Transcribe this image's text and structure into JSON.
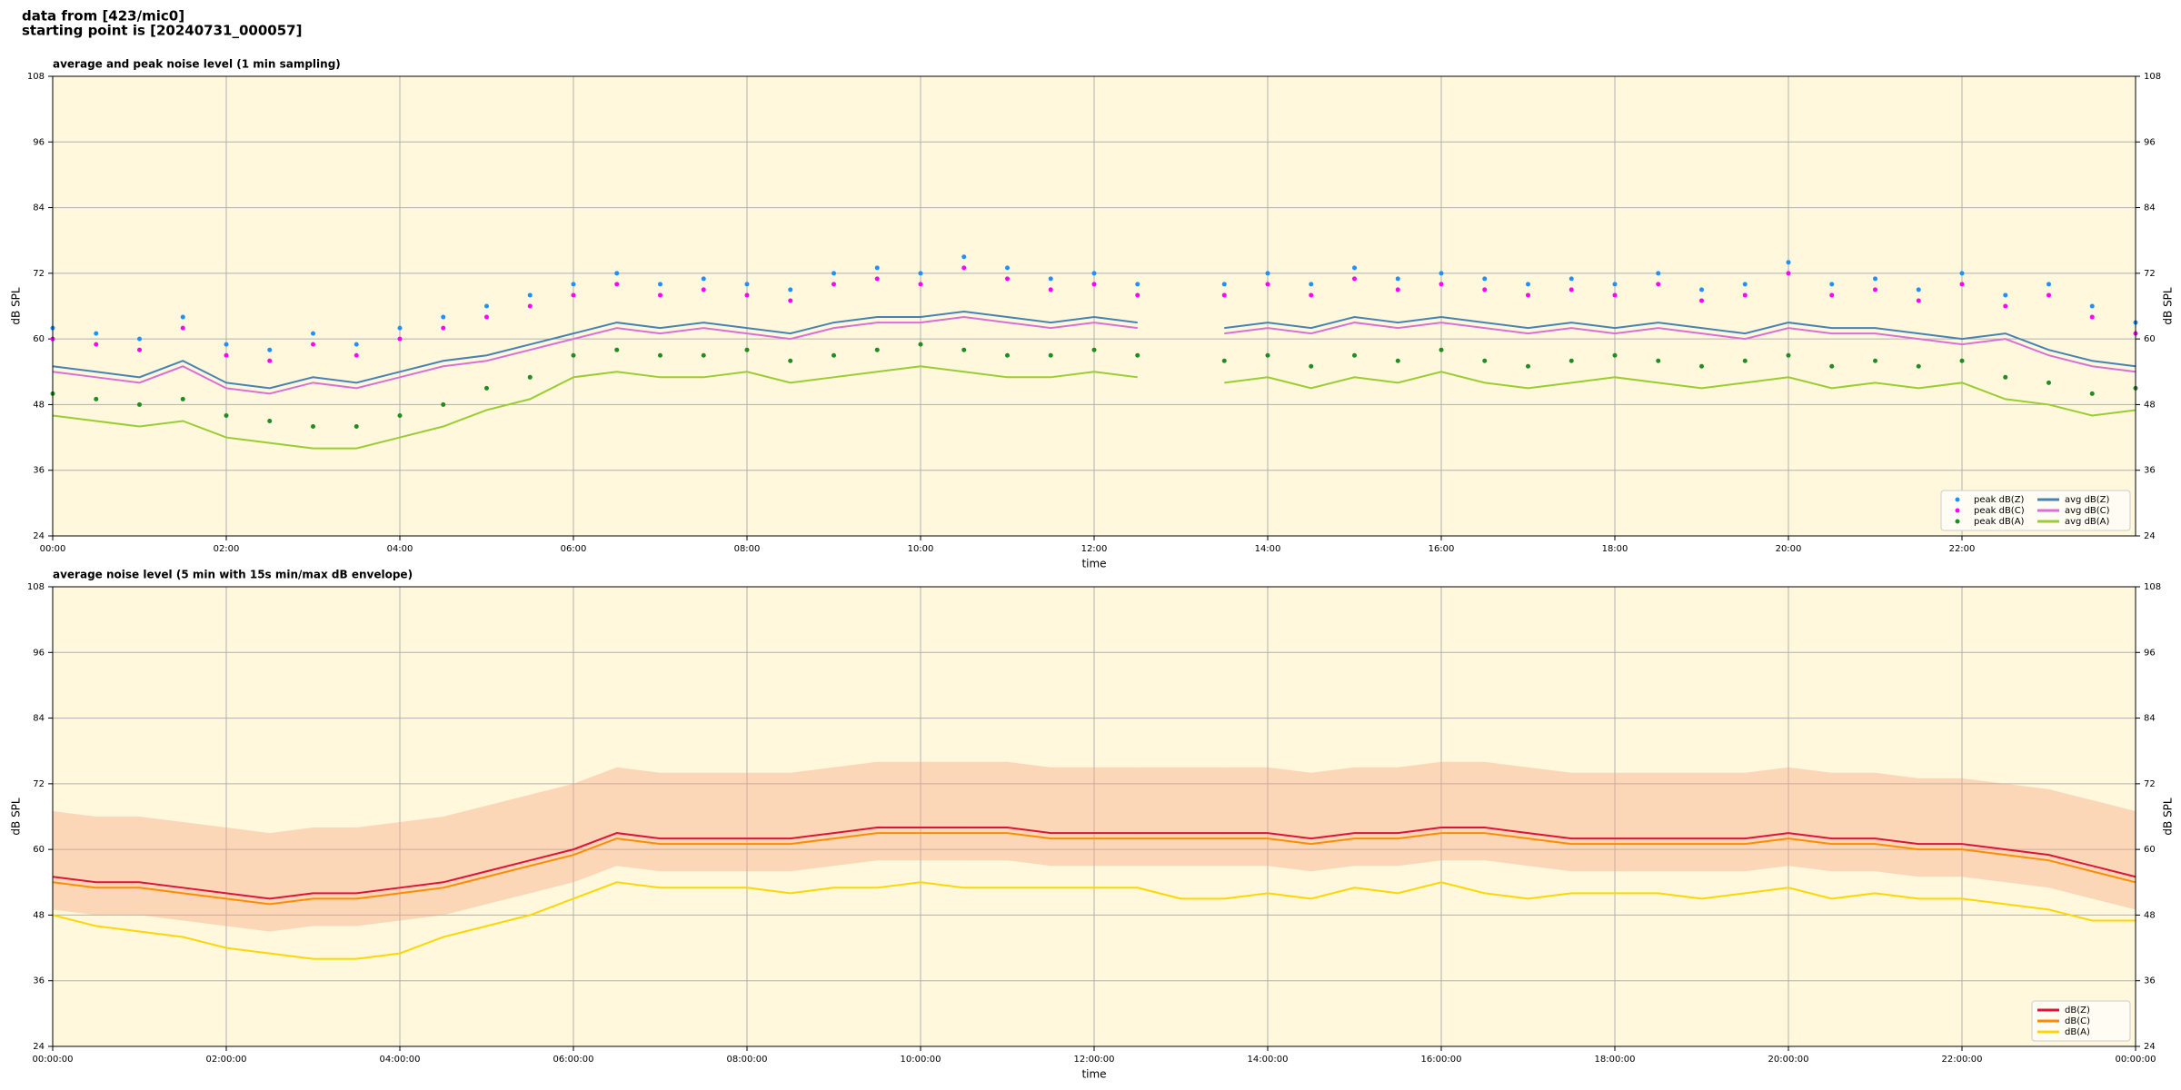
{
  "header": {
    "line1": "data from [423/mic0]",
    "line2": "starting point is [20240731_000057]"
  },
  "chart_data": [
    {
      "type": "line",
      "title": "average and peak noise level (1 min sampling)",
      "xlabel": "time",
      "ylabel": "dB SPL",
      "background": "#fff8dc",
      "grid": true,
      "legend": "lower right",
      "legend_columns": 2,
      "xlim": [
        0,
        24
      ],
      "ylim": [
        24,
        108
      ],
      "yticks": [
        24,
        36,
        48,
        60,
        72,
        84,
        96,
        108
      ],
      "xticks": [
        {
          "value": 0,
          "label": "00:00"
        },
        {
          "value": 2,
          "label": "02:00"
        },
        {
          "value": 4,
          "label": "04:00"
        },
        {
          "value": 6,
          "label": "06:00"
        },
        {
          "value": 8,
          "label": "08:00"
        },
        {
          "value": 10,
          "label": "10:00"
        },
        {
          "value": 12,
          "label": "12:00"
        },
        {
          "value": 14,
          "label": "14:00"
        },
        {
          "value": 16,
          "label": "16:00"
        },
        {
          "value": 18,
          "label": "18:00"
        },
        {
          "value": 20,
          "label": "20:00"
        },
        {
          "value": 22,
          "label": "22:00"
        }
      ],
      "x": [
        0,
        0.5,
        1,
        1.5,
        2,
        2.5,
        3,
        3.5,
        4,
        4.5,
        5,
        5.5,
        6,
        6.5,
        7,
        7.5,
        8,
        8.5,
        9,
        9.5,
        10,
        10.5,
        11,
        11.5,
        12,
        12.5,
        13,
        13.5,
        14,
        14.5,
        15,
        15.5,
        16,
        16.5,
        17,
        17.5,
        18,
        18.5,
        19,
        19.5,
        20,
        20.5,
        21,
        21.5,
        22,
        22.5,
        23,
        23.5,
        24
      ],
      "series": [
        {
          "name": "peak dB(Z)",
          "kind": "scatter",
          "color": "#1e90ff",
          "values": [
            62,
            61,
            60,
            64,
            59,
            58,
            61,
            59,
            62,
            64,
            66,
            68,
            70,
            72,
            70,
            71,
            70,
            69,
            72,
            73,
            72,
            75,
            73,
            71,
            72,
            70,
            null,
            70,
            72,
            70,
            73,
            71,
            72,
            71,
            70,
            71,
            70,
            72,
            69,
            70,
            74,
            70,
            71,
            69,
            72,
            68,
            70,
            66,
            63
          ]
        },
        {
          "name": "peak dB(C)",
          "kind": "scatter",
          "color": "#ff00ff",
          "values": [
            60,
            59,
            58,
            62,
            57,
            56,
            59,
            57,
            60,
            62,
            64,
            66,
            68,
            70,
            68,
            69,
            68,
            67,
            70,
            71,
            70,
            73,
            71,
            69,
            70,
            68,
            null,
            68,
            70,
            68,
            71,
            69,
            70,
            69,
            68,
            69,
            68,
            70,
            67,
            68,
            72,
            68,
            69,
            67,
            70,
            66,
            68,
            64,
            61
          ]
        },
        {
          "name": "peak dB(A)",
          "kind": "scatter",
          "color": "#228b22",
          "values": [
            50,
            49,
            48,
            49,
            46,
            45,
            44,
            44,
            46,
            48,
            51,
            53,
            57,
            58,
            57,
            57,
            58,
            56,
            57,
            58,
            59,
            58,
            57,
            57,
            58,
            57,
            null,
            56,
            57,
            55,
            57,
            56,
            58,
            56,
            55,
            56,
            57,
            56,
            55,
            56,
            57,
            55,
            56,
            55,
            56,
            53,
            52,
            50,
            51
          ]
        },
        {
          "name": "avg dB(Z)",
          "kind": "line",
          "color": "#4682b4",
          "values": [
            55,
            54,
            53,
            56,
            52,
            51,
            53,
            52,
            54,
            56,
            57,
            59,
            61,
            63,
            62,
            63,
            62,
            61,
            63,
            64,
            64,
            65,
            64,
            63,
            64,
            63,
            null,
            62,
            63,
            62,
            64,
            63,
            64,
            63,
            62,
            63,
            62,
            63,
            62,
            61,
            63,
            62,
            62,
            61,
            60,
            61,
            58,
            56,
            55
          ]
        },
        {
          "name": "avg dB(C)",
          "kind": "line",
          "color": "#da70d6",
          "values": [
            54,
            53,
            52,
            55,
            51,
            50,
            52,
            51,
            53,
            55,
            56,
            58,
            60,
            62,
            61,
            62,
            61,
            60,
            62,
            63,
            63,
            64,
            63,
            62,
            63,
            62,
            null,
            61,
            62,
            61,
            63,
            62,
            63,
            62,
            61,
            62,
            61,
            62,
            61,
            60,
            62,
            61,
            61,
            60,
            59,
            60,
            57,
            55,
            54
          ]
        },
        {
          "name": "avg dB(A)",
          "kind": "line",
          "color": "#9acd32",
          "values": [
            46,
            45,
            44,
            45,
            42,
            41,
            40,
            40,
            42,
            44,
            47,
            49,
            53,
            54,
            53,
            53,
            54,
            52,
            53,
            54,
            55,
            54,
            53,
            53,
            54,
            53,
            null,
            52,
            53,
            51,
            53,
            52,
            54,
            52,
            51,
            52,
            53,
            52,
            51,
            52,
            53,
            51,
            52,
            51,
            52,
            49,
            48,
            46,
            47
          ]
        }
      ]
    },
    {
      "type": "line",
      "title": "average noise level (5 min with 15s min/max dB envelope)",
      "xlabel": "time",
      "ylabel": "dB SPL",
      "background": "#fff8dc",
      "grid": true,
      "legend": "lower right",
      "legend_columns": 1,
      "xlim": [
        0,
        24
      ],
      "ylim": [
        24,
        108
      ],
      "yticks": [
        24,
        36,
        48,
        60,
        72,
        84,
        96,
        108
      ],
      "xticks": [
        {
          "value": 0,
          "label": "00:00:00"
        },
        {
          "value": 2,
          "label": "02:00:00"
        },
        {
          "value": 4,
          "label": "04:00:00"
        },
        {
          "value": 6,
          "label": "06:00:00"
        },
        {
          "value": 8,
          "label": "08:00:00"
        },
        {
          "value": 10,
          "label": "10:00:00"
        },
        {
          "value": 12,
          "label": "12:00:00"
        },
        {
          "value": 14,
          "label": "14:00:00"
        },
        {
          "value": 16,
          "label": "16:00:00"
        },
        {
          "value": 18,
          "label": "18:00:00"
        },
        {
          "value": 20,
          "label": "20:00:00"
        },
        {
          "value": 22,
          "label": "22:00:00"
        },
        {
          "value": 24,
          "label": "00:00:00"
        }
      ],
      "x": [
        0,
        0.5,
        1,
        1.5,
        2,
        2.5,
        3,
        3.5,
        4,
        4.5,
        5,
        5.5,
        6,
        6.5,
        7,
        7.5,
        8,
        8.5,
        9,
        9.5,
        10,
        10.5,
        11,
        11.5,
        12,
        12.5,
        13,
        13.5,
        14,
        14.5,
        15,
        15.5,
        16,
        16.5,
        17,
        17.5,
        18,
        18.5,
        19,
        19.5,
        20,
        20.5,
        21,
        21.5,
        22,
        22.5,
        23,
        23.5,
        24
      ],
      "envelope": {
        "color": "#f4a582",
        "upper": [
          67,
          66,
          66,
          65,
          64,
          63,
          64,
          64,
          65,
          66,
          68,
          70,
          72,
          75,
          74,
          74,
          74,
          74,
          75,
          76,
          76,
          76,
          76,
          75,
          75,
          75,
          75,
          75,
          75,
          74,
          75,
          75,
          76,
          76,
          75,
          74,
          74,
          74,
          74,
          74,
          75,
          74,
          74,
          73,
          73,
          72,
          71,
          69,
          67
        ],
        "lower": [
          49,
          48,
          48,
          47,
          46,
          45,
          46,
          46,
          47,
          48,
          50,
          52,
          54,
          57,
          56,
          56,
          56,
          56,
          57,
          58,
          58,
          58,
          58,
          57,
          57,
          57,
          57,
          57,
          57,
          56,
          57,
          57,
          58,
          58,
          57,
          56,
          56,
          56,
          56,
          56,
          57,
          56,
          56,
          55,
          55,
          54,
          53,
          51,
          49
        ]
      },
      "series": [
        {
          "name": "dB(Z)",
          "kind": "line",
          "color": "#dc143c",
          "values": [
            55,
            54,
            54,
            53,
            52,
            51,
            52,
            52,
            53,
            54,
            56,
            58,
            60,
            63,
            62,
            62,
            62,
            62,
            63,
            64,
            64,
            64,
            64,
            63,
            63,
            63,
            63,
            63,
            63,
            62,
            63,
            63,
            64,
            64,
            63,
            62,
            62,
            62,
            62,
            62,
            63,
            62,
            62,
            61,
            61,
            60,
            59,
            57,
            55
          ]
        },
        {
          "name": "dB(C)",
          "kind": "line",
          "color": "#ff8c00",
          "values": [
            54,
            53,
            53,
            52,
            51,
            50,
            51,
            51,
            52,
            53,
            55,
            57,
            59,
            62,
            61,
            61,
            61,
            61,
            62,
            63,
            63,
            63,
            63,
            62,
            62,
            62,
            62,
            62,
            62,
            61,
            62,
            62,
            63,
            63,
            62,
            61,
            61,
            61,
            61,
            61,
            62,
            61,
            61,
            60,
            60,
            59,
            58,
            56,
            54
          ]
        },
        {
          "name": "dB(A)",
          "kind": "line",
          "color": "#ffd700",
          "values": [
            48,
            46,
            45,
            44,
            42,
            41,
            40,
            40,
            41,
            44,
            46,
            48,
            51,
            54,
            53,
            53,
            53,
            52,
            53,
            53,
            54,
            53,
            53,
            53,
            53,
            53,
            51,
            51,
            52,
            51,
            53,
            52,
            54,
            52,
            51,
            52,
            52,
            52,
            51,
            52,
            53,
            51,
            52,
            51,
            51,
            50,
            49,
            47,
            47
          ]
        }
      ]
    }
  ]
}
